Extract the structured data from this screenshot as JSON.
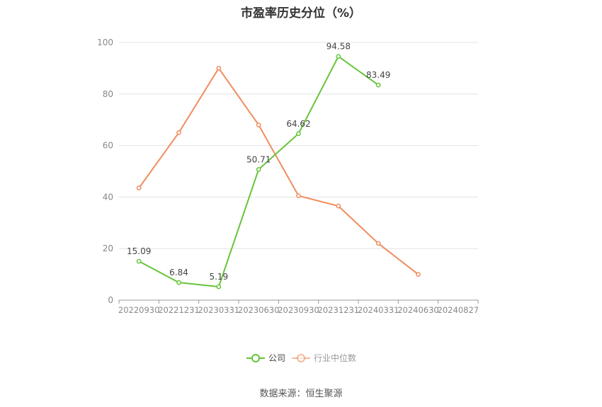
{
  "chart_data": {
    "type": "line",
    "title": "市盈率历史分位（%）",
    "categories": [
      "20220930",
      "20221231",
      "20230331",
      "20230630",
      "20230930",
      "20231231",
      "20240331",
      "20240630",
      "20240827"
    ],
    "ylim": [
      0,
      100
    ],
    "yticks": [
      0,
      20,
      40,
      60,
      80,
      100
    ],
    "xlabel": "",
    "ylabel": "",
    "grid": true,
    "legend_position": "bottom",
    "series": [
      {
        "name": "公司",
        "color": "#66c43a",
        "values": [
          15.09,
          6.84,
          5.19,
          50.71,
          64.62,
          94.58,
          83.49,
          null,
          null
        ],
        "data_labels": [
          "15.09",
          "6.84",
          "5.19",
          "50.71",
          "64.62",
          "94.58",
          "83.49",
          "",
          ""
        ]
      },
      {
        "name": "行业中位数",
        "color": "#f08c5e",
        "values": [
          43.5,
          65,
          90,
          68,
          40.5,
          36.5,
          22,
          10,
          null
        ],
        "data_labels": [
          "",
          "",
          "",
          "",
          "",
          "",
          "",
          "",
          ""
        ]
      }
    ],
    "source": "数据来源：恒生聚源"
  }
}
